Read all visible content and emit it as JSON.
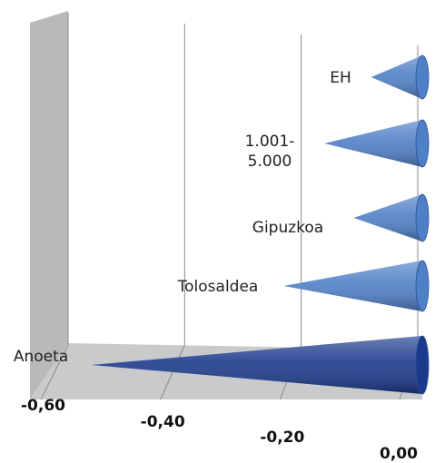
{
  "chart_data": {
    "type": "cone-bar",
    "categories": [
      "EH",
      "1.001-5.000",
      "Gipuzkoa",
      "Tolosaldea",
      "Anoeta"
    ],
    "values": [
      -0.08,
      -0.16,
      -0.11,
      -0.23,
      -0.56
    ],
    "colors": [
      "#4f7fc6",
      "#4f7fc6",
      "#4f7fc6",
      "#4f7fc6",
      "#1c3a8c"
    ],
    "xlim": [
      -0.6,
      0
    ],
    "xticks": [
      {
        "value": -0.6,
        "label": "-0,60"
      },
      {
        "value": -0.4,
        "label": "-0,40"
      },
      {
        "value": -0.2,
        "label": "-0,20"
      },
      {
        "value": 0,
        "label": "0,00"
      }
    ],
    "grid": true
  }
}
